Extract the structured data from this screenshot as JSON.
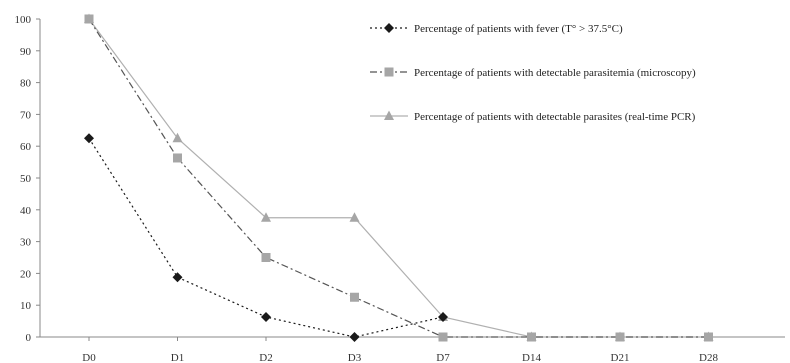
{
  "chart_data": {
    "type": "line",
    "title": "",
    "xlabel": "",
    "ylabel": "",
    "categories": [
      "D0",
      "D1",
      "D2",
      "D3",
      "D7",
      "D14",
      "D21",
      "D28"
    ],
    "ylim": [
      0,
      100
    ],
    "yticks": [
      0,
      10,
      20,
      30,
      40,
      50,
      60,
      70,
      80,
      90,
      100
    ],
    "grid": false,
    "legend_position": "top-right",
    "series": [
      {
        "name": "Percentage of patients with fever (T° > 37.5°C)",
        "values": [
          62.5,
          18.8,
          6.3,
          0,
          6.3,
          null,
          null,
          null
        ],
        "color": "#1a1a1a",
        "line_style": "dotted",
        "marker": "diamond"
      },
      {
        "name": "Percentage of patients with detectable parasitemia (microscopy)",
        "values": [
          100,
          56.3,
          25,
          12.5,
          0,
          0,
          0,
          0
        ],
        "color": "#555555",
        "marker_color": "#a6a6a6",
        "line_style": "dash-dot",
        "marker": "square"
      },
      {
        "name": "Percentage of patients with detectable parasites (real-time PCR)",
        "values": [
          100,
          62.5,
          37.5,
          37.5,
          6.3,
          0,
          0,
          0
        ],
        "color": "#b0b0b0",
        "marker_color": "#a6a6a6",
        "line_style": "solid",
        "marker": "triangle"
      }
    ]
  }
}
